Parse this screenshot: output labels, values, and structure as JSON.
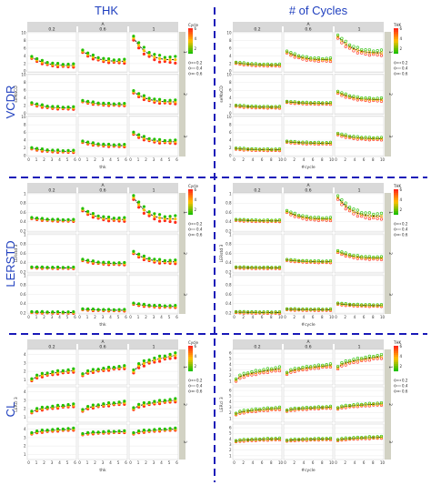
{
  "column_titles": [
    "THK",
    "# of Cycles"
  ],
  "row_titles": [
    "VCDR",
    "LERSTD",
    "CL"
  ],
  "colors": {
    "divider": "#1a1ab8",
    "title": "#1f3fbf",
    "strip_bg": "#d9d9d9",
    "right_strip_bg": "#d2d2c4",
    "panel_bg": "#ffffff",
    "grid": "#e6e6e6",
    "high": "#ff2a1a",
    "mid": "#ffc000",
    "low": "#22c000"
  },
  "strips": {
    "outer_label": "A",
    "col_labels": [
      "0.2",
      "0.6",
      "1"
    ],
    "row_labels": [
      "1",
      "2",
      "3"
    ],
    "side_label": "SCE"
  },
  "chart_data": [
    {
      "type": "scatter",
      "row": "VCDR",
      "column": "THK",
      "xlabel": "thk",
      "ylabel": "seMaCD",
      "x_ticks": [
        "0",
        "1",
        "2",
        "3",
        "4",
        "5",
        "6"
      ],
      "y_ticks": [
        "0",
        "2",
        "4",
        "6",
        "8",
        "10"
      ],
      "xlim": [
        0,
        6
      ],
      "ylim": [
        0,
        10
      ],
      "color_legend": {
        "title": "Cycle",
        "ticks": [
          "6",
          "4",
          "2"
        ]
      },
      "linetype_legend": {
        "items": [
          "0.2",
          "0.4",
          "0.6"
        ]
      },
      "series": [
        {
          "facet": [
            "0.2",
            "1"
          ],
          "start": 3.6,
          "end": 1.5
        },
        {
          "facet": [
            "0.6",
            "1"
          ],
          "start": 5.2,
          "end": 2.6
        },
        {
          "facet": [
            "1",
            "1"
          ],
          "start": 8.6,
          "end": 3.0
        },
        {
          "facet": [
            "0.2",
            "2"
          ],
          "start": 2.6,
          "end": 1.4
        },
        {
          "facet": [
            "0.6",
            "2"
          ],
          "start": 3.2,
          "end": 2.3
        },
        {
          "facet": [
            "1",
            "2"
          ],
          "start": 5.6,
          "end": 3.0
        },
        {
          "facet": [
            "0.2",
            "3"
          ],
          "start": 1.9,
          "end": 1.1
        },
        {
          "facet": [
            "0.6",
            "3"
          ],
          "start": 3.6,
          "end": 2.6
        },
        {
          "facet": [
            "1",
            "3"
          ],
          "start": 5.8,
          "end": 3.6
        }
      ]
    },
    {
      "type": "scatter",
      "row": "VCDR",
      "column": "# of Cycles",
      "xlabel": "#cycle",
      "ylabel": "seMaCD",
      "x_ticks": [
        "0",
        "2",
        "4",
        "6",
        "8",
        "10"
      ],
      "y_ticks": [
        "0",
        "2",
        "4",
        "6",
        "8",
        "10"
      ],
      "xlim": [
        0,
        10
      ],
      "ylim": [
        0,
        10
      ],
      "color_legend": {
        "title": "THK",
        "ticks": [
          "6",
          "4",
          "2"
        ]
      },
      "linetype_legend": {
        "items": [
          "0.2",
          "0.4",
          "0.6"
        ]
      },
      "series": [
        {
          "facet": [
            "0.2",
            "1"
          ],
          "start": 2.2,
          "end": 1.6
        },
        {
          "facet": [
            "0.6",
            "1"
          ],
          "start": 5.0,
          "end": 3.0
        },
        {
          "facet": [
            "1",
            "1"
          ],
          "start": 9.0,
          "end": 4.8
        },
        {
          "facet": [
            "0.2",
            "2"
          ],
          "start": 2.0,
          "end": 1.6
        },
        {
          "facet": [
            "0.6",
            "2"
          ],
          "start": 3.0,
          "end": 2.6
        },
        {
          "facet": [
            "1",
            "2"
          ],
          "start": 5.5,
          "end": 3.6
        },
        {
          "facet": [
            "0.2",
            "3"
          ],
          "start": 1.8,
          "end": 1.5
        },
        {
          "facet": [
            "0.6",
            "3"
          ],
          "start": 3.6,
          "end": 3.2
        },
        {
          "facet": [
            "1",
            "3"
          ],
          "start": 5.6,
          "end": 4.4
        }
      ]
    },
    {
      "type": "scatter",
      "row": "LERSTD",
      "column": "THK",
      "xlabel": "thk",
      "ylabel": "LERstd 3",
      "x_ticks": [
        "0",
        "1",
        "2",
        "3",
        "4",
        "5",
        "6"
      ],
      "y_ticks": [
        "0.2",
        "0.4",
        "0.6",
        "0.8",
        "1"
      ],
      "xlim": [
        0,
        6
      ],
      "ylim": [
        0.2,
        1.0
      ],
      "color_legend": {
        "title": "Cycle",
        "ticks": [
          "6",
          "4",
          "2"
        ]
      },
      "linetype_legend": {
        "items": [
          "0.2",
          "0.4",
          "0.6"
        ]
      },
      "series": [
        {
          "facet": [
            "0.2",
            "1"
          ],
          "start": 0.48,
          "end": 0.43
        },
        {
          "facet": [
            "0.6",
            "1"
          ],
          "start": 0.66,
          "end": 0.45
        },
        {
          "facet": [
            "1",
            "1"
          ],
          "start": 0.92,
          "end": 0.46
        },
        {
          "facet": [
            "0.2",
            "2"
          ],
          "start": 0.3,
          "end": 0.29
        },
        {
          "facet": [
            "0.6",
            "2"
          ],
          "start": 0.46,
          "end": 0.38
        },
        {
          "facet": [
            "1",
            "2"
          ],
          "start": 0.62,
          "end": 0.42
        },
        {
          "facet": [
            "0.2",
            "3"
          ],
          "start": 0.22,
          "end": 0.21
        },
        {
          "facet": [
            "0.6",
            "3"
          ],
          "start": 0.28,
          "end": 0.26
        },
        {
          "facet": [
            "1",
            "3"
          ],
          "start": 0.4,
          "end": 0.34
        }
      ]
    },
    {
      "type": "scatter",
      "row": "LERSTD",
      "column": "# of Cycles",
      "xlabel": "#cycle",
      "ylabel": "LERstd 3",
      "x_ticks": [
        "0",
        "2",
        "4",
        "6",
        "8",
        "10"
      ],
      "y_ticks": [
        "0.2",
        "0.4",
        "0.6",
        "0.8",
        "1"
      ],
      "xlim": [
        0,
        10
      ],
      "ylim": [
        0.2,
        1.0
      ],
      "color_legend": {
        "title": "THK",
        "ticks": [
          "6",
          "4",
          "2"
        ]
      },
      "linetype_legend": {
        "items": [
          "0.2",
          "0.4",
          "0.6"
        ]
      },
      "series": [
        {
          "facet": [
            "0.2",
            "1"
          ],
          "start": 0.44,
          "end": 0.42
        },
        {
          "facet": [
            "0.6",
            "1"
          ],
          "start": 0.62,
          "end": 0.46
        },
        {
          "facet": [
            "1",
            "1"
          ],
          "start": 0.92,
          "end": 0.52
        },
        {
          "facet": [
            "0.2",
            "2"
          ],
          "start": 0.3,
          "end": 0.29
        },
        {
          "facet": [
            "0.6",
            "2"
          ],
          "start": 0.46,
          "end": 0.42
        },
        {
          "facet": [
            "1",
            "2"
          ],
          "start": 0.64,
          "end": 0.5
        },
        {
          "facet": [
            "0.2",
            "3"
          ],
          "start": 0.22,
          "end": 0.21
        },
        {
          "facet": [
            "0.6",
            "3"
          ],
          "start": 0.28,
          "end": 0.27
        },
        {
          "facet": [
            "1",
            "3"
          ],
          "start": 0.4,
          "end": 0.36
        }
      ]
    },
    {
      "type": "scatter",
      "row": "CL",
      "column": "THK",
      "xlabel": "thk",
      "ylabel": "LERcl 3",
      "x_ticks": [
        "0",
        "1",
        "2",
        "3",
        "4",
        "5",
        "6"
      ],
      "y_ticks": [
        "1",
        "2",
        "3",
        "4"
      ],
      "xlim": [
        0,
        6
      ],
      "ylim": [
        0.5,
        4.5
      ],
      "color_legend": {
        "title": "Cycle",
        "ticks": [
          "6",
          "4",
          "2"
        ]
      },
      "linetype_legend": {
        "items": [
          "0.2",
          "0.4",
          "0.6"
        ]
      },
      "series": [
        {
          "facet": [
            "0.2",
            "1"
          ],
          "start": 1.0,
          "end": 2.1
        },
        {
          "facet": [
            "0.6",
            "1"
          ],
          "start": 1.6,
          "end": 2.5
        },
        {
          "facet": [
            "1",
            "1"
          ],
          "start": 2.0,
          "end": 3.9
        },
        {
          "facet": [
            "0.2",
            "2"
          ],
          "start": 1.6,
          "end": 2.4
        },
        {
          "facet": [
            "0.6",
            "2"
          ],
          "start": 1.8,
          "end": 2.7
        },
        {
          "facet": [
            "1",
            "2"
          ],
          "start": 2.0,
          "end": 3.0
        },
        {
          "facet": [
            "0.2",
            "3"
          ],
          "start": 3.5,
          "end": 4.0
        },
        {
          "facet": [
            "0.6",
            "3"
          ],
          "start": 3.4,
          "end": 3.7
        },
        {
          "facet": [
            "1",
            "3"
          ],
          "start": 3.5,
          "end": 4.0
        }
      ]
    },
    {
      "type": "scatter",
      "row": "CL",
      "column": "# of Cycles",
      "xlabel": "#cycle",
      "ylabel": "LERcl 3",
      "x_ticks": [
        "0",
        "2",
        "4",
        "6",
        "8",
        "10"
      ],
      "y_ticks": [
        "1",
        "2",
        "3",
        "4",
        "5",
        "6"
      ],
      "xlim": [
        0,
        10
      ],
      "ylim": [
        0.5,
        6.5
      ],
      "color_legend": {
        "title": "THK",
        "ticks": [
          "6",
          "4",
          "2"
        ]
      },
      "linetype_legend": {
        "items": [
          "0.2",
          "0.4",
          "0.6"
        ]
      },
      "series": [
        {
          "facet": [
            "0.2",
            "1"
          ],
          "start": 1.2,
          "end": 3.2
        },
        {
          "facet": [
            "0.6",
            "1"
          ],
          "start": 2.4,
          "end": 3.8
        },
        {
          "facet": [
            "1",
            "1"
          ],
          "start": 3.4,
          "end": 5.4
        },
        {
          "facet": [
            "0.2",
            "2"
          ],
          "start": 1.8,
          "end": 2.8
        },
        {
          "facet": [
            "0.6",
            "2"
          ],
          "start": 2.4,
          "end": 3.0
        },
        {
          "facet": [
            "1",
            "2"
          ],
          "start": 2.8,
          "end": 3.6
        },
        {
          "facet": [
            "0.2",
            "3"
          ],
          "start": 3.6,
          "end": 4.0
        },
        {
          "facet": [
            "0.6",
            "3"
          ],
          "start": 3.7,
          "end": 4.0
        },
        {
          "facet": [
            "1",
            "3"
          ],
          "start": 3.8,
          "end": 4.3
        }
      ]
    }
  ]
}
